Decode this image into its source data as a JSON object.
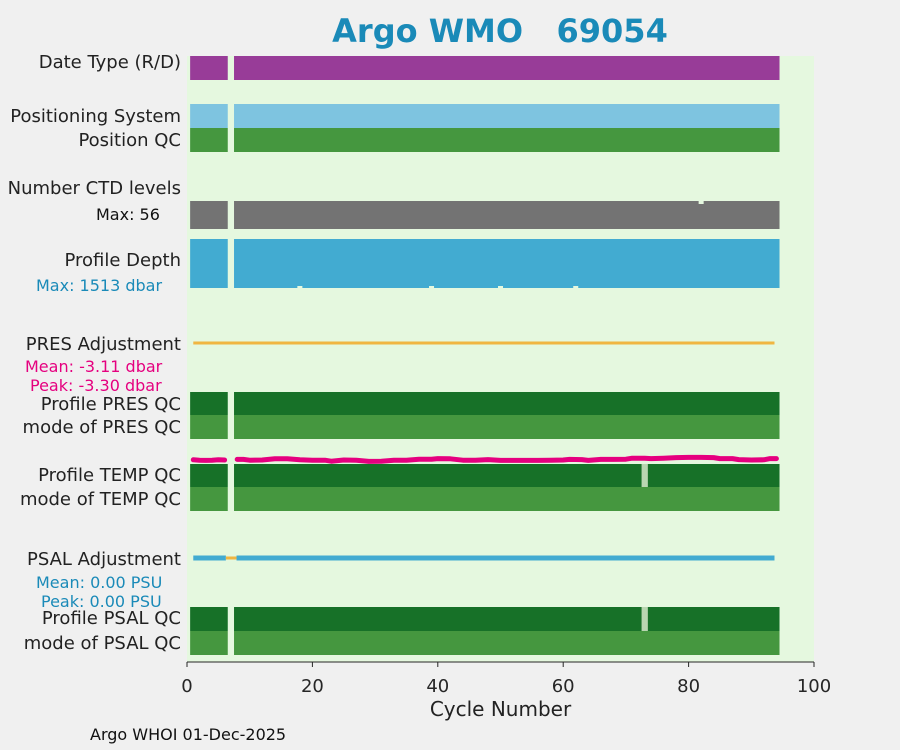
{
  "title": "Argo WMO   69054",
  "footer": "Argo WHOI 01-Dec-2025",
  "rows": {
    "date_type": "Date Type (R/D)",
    "positioning_system": "Positioning System",
    "position_qc": "Position QC",
    "number_ctd_levels": "Number CTD levels",
    "ctd_max": "Max: 56",
    "profile_depth": "Profile Depth",
    "depth_max": "Max: 1513 dbar",
    "pres_adjustment": "PRES Adjustment",
    "pres_mean": "Mean: -3.11 dbar",
    "pres_peak": "Peak: -3.30 dbar",
    "profile_pres_qc": "Profile PRES QC",
    "mode_pres_qc": "mode of PRES QC",
    "profile_temp_qc": "Profile TEMP QC",
    "mode_temp_qc": "mode of TEMP QC",
    "psal_adjustment": "PSAL Adjustment",
    "psal_mean": "Mean: 0.00 PSU",
    "psal_peak": "Peak: 0.00 PSU",
    "profile_psal_qc": "Profile PSAL QC",
    "mode_psal_qc": "mode of PSAL QC"
  },
  "colors": {
    "plot_bg": "#e5f8df",
    "purple": "#983c98",
    "light_blue": "#7ec4e0",
    "green": "#45973f",
    "dark_green": "#177128",
    "pale_green": "#b9d6b1",
    "gray": "#737373",
    "depth_blue": "#42abd1",
    "orange": "#f0b642",
    "magenta": "#e5007f",
    "title_blue": "#1a8ab8"
  },
  "chart_data": {
    "type": "bar",
    "title": "Argo WMO   69054",
    "xlabel": "Cycle Number",
    "ylabel": "",
    "xlim": [
      0,
      100
    ],
    "xticks": [
      0,
      20,
      40,
      60,
      80,
      100
    ],
    "cycle_range": [
      1,
      94
    ],
    "missing_cycles": [
      7
    ],
    "flagged_cycles": {
      "profile_temp_qc": [
        73
      ],
      "profile_psal_qc": [
        73
      ]
    },
    "max_ctd_levels": 56,
    "max_profile_depth_dbar": 1513,
    "ctd_levels_dip_cycles": [
      82
    ],
    "depth_dip_cycles": [
      18,
      39,
      50,
      62
    ],
    "pres_adjustment": {
      "mean_dbar": -3.11,
      "peak_dbar": -3.3
    },
    "psal_adjustment": {
      "mean_psu": 0.0,
      "peak_psu": 0.0
    },
    "pres_adjustment_trace": [
      [
        1,
        0.45
      ],
      [
        2,
        0.55
      ],
      [
        3,
        0.6
      ],
      [
        4,
        0.55
      ],
      [
        5,
        0.45
      ],
      [
        6,
        0.5
      ],
      [
        8,
        0.35
      ],
      [
        9,
        0.35
      ],
      [
        10,
        0.55
      ],
      [
        12,
        0.5
      ],
      [
        14,
        0.2
      ],
      [
        16,
        0.2
      ],
      [
        18,
        0.45
      ],
      [
        20,
        0.55
      ],
      [
        22,
        0.55
      ],
      [
        23,
        0.8
      ],
      [
        25,
        0.5
      ],
      [
        27,
        0.55
      ],
      [
        29,
        0.85
      ],
      [
        31,
        0.8
      ],
      [
        33,
        0.55
      ],
      [
        35,
        0.55
      ],
      [
        37,
        0.3
      ],
      [
        39,
        0.3
      ],
      [
        40,
        0.15
      ],
      [
        42,
        0.2
      ],
      [
        44,
        0.55
      ],
      [
        46,
        0.55
      ],
      [
        48,
        0.4
      ],
      [
        50,
        0.6
      ],
      [
        52,
        0.6
      ],
      [
        54,
        0.6
      ],
      [
        56,
        0.6
      ],
      [
        58,
        0.55
      ],
      [
        60,
        0.5
      ],
      [
        61,
        0.35
      ],
      [
        63,
        0.4
      ],
      [
        64,
        0.6
      ],
      [
        66,
        0.35
      ],
      [
        68,
        0.35
      ],
      [
        70,
        0.3
      ],
      [
        71,
        0.05
      ],
      [
        73,
        0.05
      ],
      [
        74,
        0.15
      ],
      [
        76,
        0.05
      ],
      [
        78,
        -0.1
      ],
      [
        80,
        -0.15
      ],
      [
        82,
        -0.15
      ],
      [
        84,
        -0.1
      ],
      [
        85,
        0.15
      ],
      [
        87,
        0.15
      ],
      [
        88,
        0.4
      ],
      [
        90,
        0.5
      ],
      [
        92,
        0.45
      ],
      [
        93,
        0.15
      ],
      [
        94,
        0.15
      ]
    ],
    "rows": [
      {
        "name": "Date Type (R/D)",
        "color": "purple"
      },
      {
        "name": "Positioning System",
        "color": "light_blue"
      },
      {
        "name": "Position QC",
        "color": "green"
      },
      {
        "name": "Number CTD levels",
        "color": "gray"
      },
      {
        "name": "Profile Depth",
        "color": "depth_blue"
      },
      {
        "name": "PRES Adjustment",
        "color": "orange"
      },
      {
        "name": "Profile PRES QC",
        "color": "dark_green"
      },
      {
        "name": "mode of PRES QC",
        "color": "green"
      },
      {
        "name": "Profile TEMP QC",
        "color": "dark_green"
      },
      {
        "name": "mode of TEMP QC",
        "color": "green"
      },
      {
        "name": "PSAL Adjustment",
        "color": "depth_blue"
      },
      {
        "name": "Profile PSAL QC",
        "color": "dark_green"
      },
      {
        "name": "mode of PSAL QC",
        "color": "green"
      }
    ]
  }
}
